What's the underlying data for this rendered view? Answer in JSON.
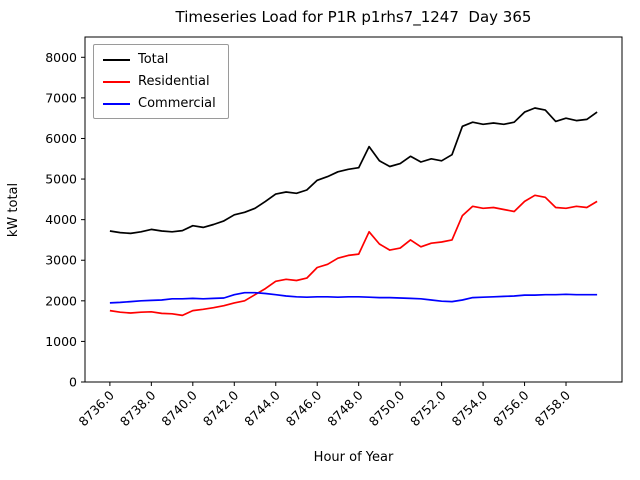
{
  "chart_data": {
    "type": "line",
    "title": "Timeseries Load for P1R p1rhs7_1247  Day 365",
    "xlabel": "Hour of Year",
    "ylabel": "kW total",
    "grid": false,
    "legend_position": "upper left",
    "xlim": [
      8734.8,
      8760.7
    ],
    "ylim": [
      0,
      8500
    ],
    "xticks": [
      8736,
      8738,
      8740,
      8742,
      8744,
      8746,
      8748,
      8750,
      8752,
      8754,
      8756,
      8758
    ],
    "xtick_labels": [
      "8736.0",
      "8738.0",
      "8740.0",
      "8742.0",
      "8744.0",
      "8746.0",
      "8748.0",
      "8750.0",
      "8752.0",
      "8754.0",
      "8756.0",
      "8758.0"
    ],
    "yticks": [
      0,
      1000,
      2000,
      3000,
      4000,
      5000,
      6000,
      7000,
      8000
    ],
    "ytick_labels": [
      "0",
      "1000",
      "2000",
      "3000",
      "4000",
      "5000",
      "6000",
      "7000",
      "8000"
    ],
    "x": [
      8736.0,
      8736.5,
      8737.0,
      8737.5,
      8738.0,
      8738.5,
      8739.0,
      8739.5,
      8740.0,
      8740.5,
      8741.0,
      8741.5,
      8742.0,
      8742.5,
      8743.0,
      8743.5,
      8744.0,
      8744.5,
      8745.0,
      8745.5,
      8746.0,
      8746.5,
      8747.0,
      8747.5,
      8748.0,
      8748.5,
      8749.0,
      8749.5,
      8750.0,
      8750.5,
      8751.0,
      8751.5,
      8752.0,
      8752.5,
      8753.0,
      8753.5,
      8754.0,
      8754.5,
      8755.0,
      8755.5,
      8756.0,
      8756.5,
      8757.0,
      8757.5,
      8758.0,
      8758.5,
      8759.0,
      8759.5
    ],
    "series": [
      {
        "name": "Total",
        "color": "#000000",
        "values": [
          3720,
          3680,
          3660,
          3700,
          3760,
          3720,
          3700,
          3730,
          3850,
          3810,
          3880,
          3970,
          4120,
          4180,
          4280,
          4450,
          4630,
          4680,
          4650,
          4730,
          4970,
          5060,
          5180,
          5240,
          5280,
          5800,
          5450,
          5310,
          5380,
          5560,
          5420,
          5500,
          5450,
          5600,
          6300,
          6400,
          6350,
          6380,
          6350,
          6400,
          6650,
          6750,
          6700,
          6420,
          6500,
          6440,
          6470,
          6650
        ]
      },
      {
        "name": "Residential",
        "color": "#ff0000",
        "values": [
          1760,
          1720,
          1700,
          1720,
          1730,
          1690,
          1680,
          1640,
          1760,
          1790,
          1830,
          1880,
          1950,
          2000,
          2150,
          2300,
          2480,
          2530,
          2500,
          2560,
          2820,
          2900,
          3050,
          3120,
          3150,
          3700,
          3400,
          3250,
          3300,
          3500,
          3330,
          3420,
          3450,
          3500,
          4100,
          4330,
          4280,
          4300,
          4250,
          4200,
          4450,
          4600,
          4550,
          4300,
          4280,
          4330,
          4300,
          4450
        ]
      },
      {
        "name": "Commercial",
        "color": "#0000ff",
        "values": [
          1950,
          1960,
          1980,
          2000,
          2010,
          2020,
          2050,
          2050,
          2060,
          2050,
          2060,
          2070,
          2150,
          2200,
          2200,
          2180,
          2150,
          2120,
          2100,
          2090,
          2100,
          2100,
          2090,
          2100,
          2100,
          2090,
          2080,
          2080,
          2070,
          2060,
          2050,
          2020,
          1990,
          1980,
          2020,
          2080,
          2090,
          2100,
          2110,
          2120,
          2140,
          2140,
          2150,
          2150,
          2160,
          2150,
          2150,
          2150
        ]
      }
    ]
  }
}
